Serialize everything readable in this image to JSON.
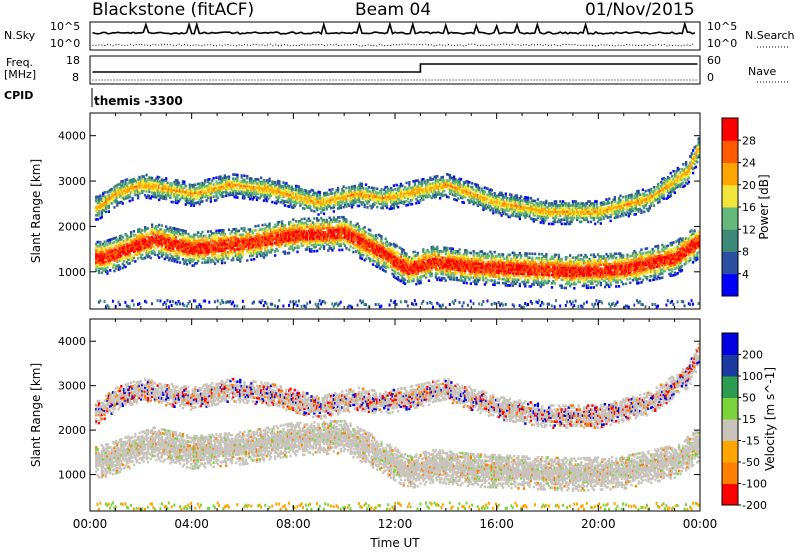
{
  "header": {
    "station": "Blackstone (fitACF)",
    "beam": "Beam 04",
    "date": "01/Nov/2015"
  },
  "top_panels": {
    "noise": {
      "left_label": "N.Sky",
      "right_label": "N.Search",
      "left_ticks": [
        "10^5",
        "10^0"
      ],
      "right_ticks": [
        "10^5",
        "10^0"
      ]
    },
    "freq": {
      "left_label_1": "Freq.",
      "left_label_2": "[MHz]",
      "left_ticks": [
        "18",
        "8"
      ],
      "right_ticks": [
        "60",
        "0"
      ],
      "right_label": "Nave"
    },
    "cpid": {
      "label": "CPID",
      "value": "themis -3300"
    }
  },
  "colors": {
    "power": [
      "#0000ff",
      "#2a4fa0",
      "#3d8a78",
      "#66b87a",
      "#f2e53c",
      "#ffa500",
      "#ff5a00",
      "#ff0000"
    ],
    "velocity": [
      "#ff0000",
      "#ff8000",
      "#ffa500",
      "#c8c4bc",
      "#7bd43a",
      "#2e9c50",
      "#1a3aa0",
      "#0000e0"
    ],
    "ground": "#c8c4bc"
  },
  "chart_data": [
    {
      "type": "heatmap",
      "title": "Power",
      "xlabel": "Time UT",
      "ylabel": "Slant Range [km]",
      "x_ticks": [
        "00:00",
        "04:00",
        "08:00",
        "12:00",
        "16:00",
        "20:00",
        "00:00"
      ],
      "xlim_hours": [
        0,
        24
      ],
      "ylim": [
        180,
        4500
      ],
      "y_ticks": [
        1000,
        2000,
        3000,
        4000
      ],
      "colorbar": {
        "label": "Power [dB]",
        "ticks": [
          "4",
          "8",
          "12",
          "16",
          "20",
          "24",
          "28"
        ],
        "range": [
          0,
          30
        ]
      },
      "echo_bands": [
        {
          "name": "lower scatter",
          "points": [
            [
              0.5,
              1300
            ],
            [
              1.5,
              1500
            ],
            [
              2.5,
              1700
            ],
            [
              4,
              1500
            ],
            [
              6,
              1600
            ],
            [
              8,
              1800
            ],
            [
              10,
              1850
            ],
            [
              11.5,
              1400
            ],
            [
              12.5,
              1050
            ],
            [
              13.5,
              1200
            ],
            [
              15,
              1100
            ],
            [
              17,
              1050
            ],
            [
              19,
              1000
            ],
            [
              21,
              1050
            ],
            [
              23,
              1300
            ],
            [
              24,
              1700
            ]
          ]
        },
        {
          "name": "upper scatter",
          "points": [
            [
              0.3,
              2400
            ],
            [
              1,
              2700
            ],
            [
              2,
              2900
            ],
            [
              4,
              2700
            ],
            [
              5.5,
              2900
            ],
            [
              7,
              2800
            ],
            [
              9,
              2500
            ],
            [
              10.5,
              2700
            ],
            [
              11.5,
              2600
            ],
            [
              14,
              2900
            ],
            [
              16,
              2500
            ],
            [
              18,
              2300
            ],
            [
              20,
              2300
            ],
            [
              22,
              2600
            ],
            [
              23.5,
              3200
            ],
            [
              24,
              3800
            ]
          ]
        }
      ]
    },
    {
      "type": "heatmap",
      "title": "Velocity",
      "xlabel": "Time UT",
      "ylabel": "Slant Range [km]",
      "x_ticks": [
        "00:00",
        "04:00",
        "08:00",
        "12:00",
        "16:00",
        "20:00",
        "00:00"
      ],
      "xlim_hours": [
        0,
        24
      ],
      "ylim": [
        180,
        4500
      ],
      "y_ticks": [
        1000,
        2000,
        3000,
        4000
      ],
      "colorbar": {
        "label": "Velocity [m s^-1]",
        "ticks": [
          "200",
          "100",
          "50",
          "15",
          "-15",
          "-50",
          "-100",
          "-200"
        ],
        "range": [
          -250,
          250
        ]
      }
    }
  ]
}
